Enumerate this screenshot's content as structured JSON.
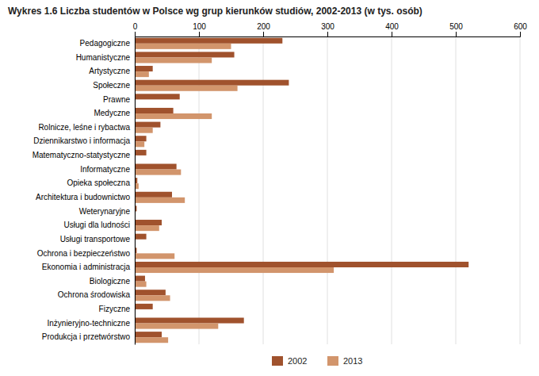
{
  "chart_data": {
    "type": "bar",
    "orientation": "horizontal",
    "title": "Wykres 1.6 Liczba studentów w Polsce wg grup kierunków studiów, 2002-2013 (w tys. osób)",
    "categories": [
      "Pedagogiczne",
      "Humanistyczne",
      "Artystyczne",
      "Społeczne",
      "Prawne",
      "Medyczne",
      "Rolnicze, leśne i rybactwa",
      "Dziennikarstwo i informacja",
      "Matematyczno-statystyczne",
      "Informatyczne",
      "Opieka społeczna",
      "Architektura i budownictwo",
      "Weterynaryjne",
      "Usługi dla ludności",
      "Usługi transportowe",
      "Ochrona i bezpieczeństwo",
      "Ekonomia i administracja",
      "Biologiczne",
      "Ochrona środowiska",
      "Fizyczne",
      "Inżynieryjno-techniczne",
      "Produkcja i przetwórstwo"
    ],
    "series": [
      {
        "name": "2002",
        "color": "#A0522D",
        "values": [
          230,
          155,
          28,
          240,
          70,
          60,
          40,
          18,
          18,
          65,
          4,
          58,
          3,
          42,
          18,
          3,
          520,
          16,
          48,
          28,
          170,
          42
        ]
      },
      {
        "name": "2013",
        "color": "#D2956C",
        "values": [
          150,
          120,
          22,
          160,
          0,
          120,
          28,
          15,
          0,
          72,
          6,
          78,
          0,
          38,
          0,
          62,
          310,
          18,
          55,
          0,
          130,
          52
        ]
      }
    ],
    "xlim": [
      0,
      600
    ],
    "xticks": [
      0,
      100,
      200,
      300,
      400,
      500,
      600
    ],
    "grid": true,
    "legend": "bottom"
  }
}
